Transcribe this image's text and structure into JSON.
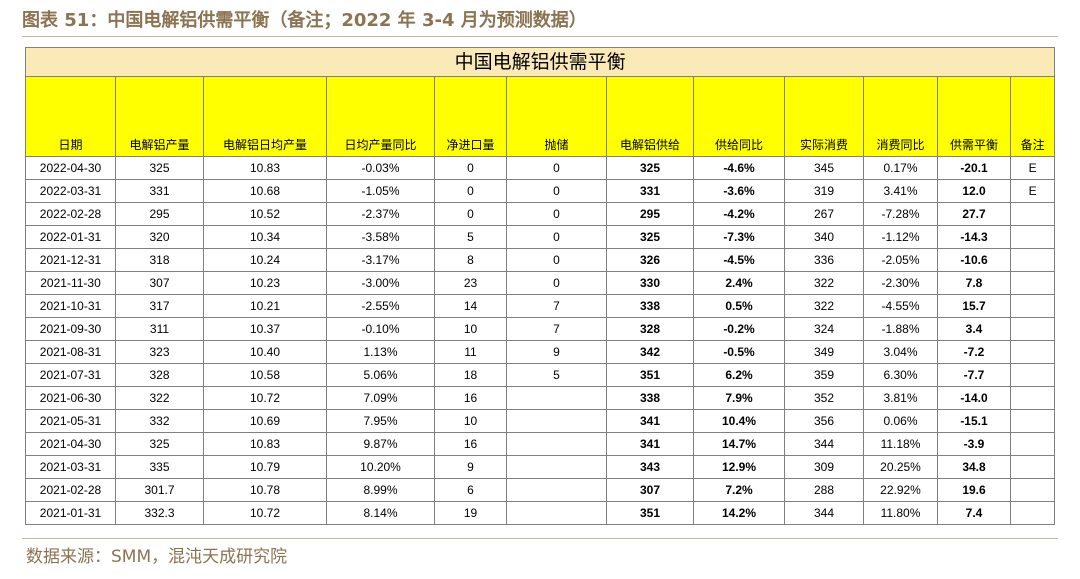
{
  "figure_title": "图表 51：中国电解铝供需平衡（备注；2022 年 3-4 月为预测数据）",
  "table_title": "中国电解铝供需平衡",
  "headers": [
    "日期",
    "电解铝产量",
    "电解铝日均产量",
    "日均产量同比",
    "净进口量",
    "抛储",
    "电解铝供给",
    "供给同比",
    "实际消费",
    "消费同比",
    "供需平衡",
    "备注"
  ],
  "rows": [
    [
      "2022-04-30",
      "325",
      "10.83",
      "-0.03%",
      "0",
      "0",
      "325",
      "-4.6%",
      "345",
      "0.17%",
      "-20.1",
      "E"
    ],
    [
      "2022-03-31",
      "331",
      "10.68",
      "-1.05%",
      "0",
      "0",
      "331",
      "-3.6%",
      "319",
      "3.41%",
      "12.0",
      "E"
    ],
    [
      "2022-02-28",
      "295",
      "10.52",
      "-2.37%",
      "0",
      "0",
      "295",
      "-4.2%",
      "267",
      "-7.28%",
      "27.7",
      ""
    ],
    [
      "2022-01-31",
      "320",
      "10.34",
      "-3.58%",
      "5",
      "0",
      "325",
      "-7.3%",
      "340",
      "-1.12%",
      "-14.3",
      ""
    ],
    [
      "2021-12-31",
      "318",
      "10.24",
      "-3.17%",
      "8",
      "0",
      "326",
      "-4.5%",
      "336",
      "-2.05%",
      "-10.6",
      ""
    ],
    [
      "2021-11-30",
      "307",
      "10.23",
      "-3.00%",
      "23",
      "0",
      "330",
      "2.4%",
      "322",
      "-2.30%",
      "7.8",
      ""
    ],
    [
      "2021-10-31",
      "317",
      "10.21",
      "-2.55%",
      "14",
      "7",
      "338",
      "0.5%",
      "322",
      "-4.55%",
      "15.7",
      ""
    ],
    [
      "2021-09-30",
      "311",
      "10.37",
      "-0.10%",
      "10",
      "7",
      "328",
      "-0.2%",
      "324",
      "-1.88%",
      "3.4",
      ""
    ],
    [
      "2021-08-31",
      "323",
      "10.40",
      "1.13%",
      "11",
      "9",
      "342",
      "-0.5%",
      "349",
      "3.04%",
      "-7.2",
      ""
    ],
    [
      "2021-07-31",
      "328",
      "10.58",
      "5.06%",
      "18",
      "5",
      "351",
      "6.2%",
      "359",
      "6.30%",
      "-7.7",
      ""
    ],
    [
      "2021-06-30",
      "322",
      "10.72",
      "7.09%",
      "16",
      "",
      "338",
      "7.9%",
      "352",
      "3.81%",
      "-14.0",
      ""
    ],
    [
      "2021-05-31",
      "332",
      "10.69",
      "7.95%",
      "10",
      "",
      "341",
      "10.4%",
      "356",
      "0.06%",
      "-15.1",
      ""
    ],
    [
      "2021-04-30",
      "325",
      "10.83",
      "9.87%",
      "16",
      "",
      "341",
      "14.7%",
      "344",
      "11.18%",
      "-3.9",
      ""
    ],
    [
      "2021-03-31",
      "335",
      "10.79",
      "10.20%",
      "9",
      "",
      "343",
      "12.9%",
      "309",
      "20.25%",
      "34.8",
      ""
    ],
    [
      "2021-02-28",
      "301.7",
      "10.78",
      "8.99%",
      "6",
      "",
      "307",
      "7.2%",
      "288",
      "22.92%",
      "19.6",
      ""
    ],
    [
      "2021-01-31",
      "332.3",
      "10.72",
      "8.14%",
      "19",
      "",
      "351",
      "14.2%",
      "344",
      "11.80%",
      "7.4",
      ""
    ]
  ],
  "source": "数据来源：SMM，混沌天成研究院"
}
